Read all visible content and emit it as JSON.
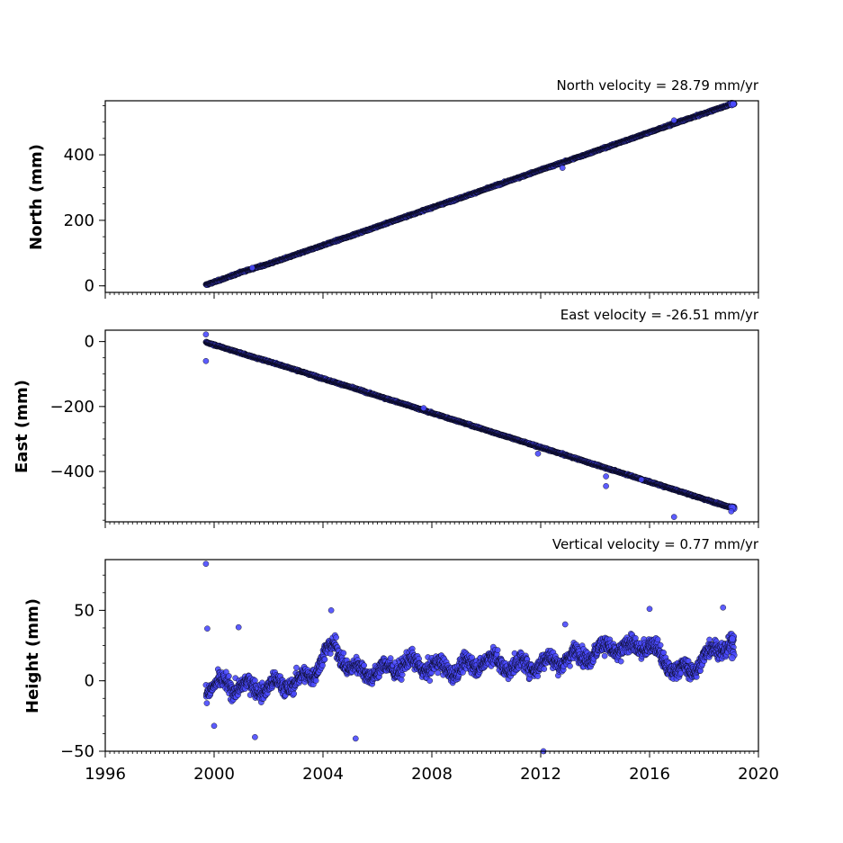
{
  "chart_data": [
    {
      "type": "scatter",
      "title": "North velocity = 28.79 mm/yr",
      "ylabel": "North (mm)",
      "xlim": [
        1996,
        2020
      ],
      "ylim": [
        -20,
        565
      ],
      "yticks": [
        0,
        200,
        400
      ],
      "ytick_labels": [
        "0",
        "200",
        "400"
      ],
      "xticks": [
        1996,
        2000,
        2004,
        2008,
        2012,
        2016,
        2020
      ],
      "xtick_labels": [
        "",
        "",
        "",
        "",
        "",
        "",
        ""
      ],
      "series": [
        {
          "color": "#4a4aff",
          "x": [
            1999.7,
            2000.5,
            2001.0,
            2001.6,
            2002.0,
            2003.0,
            2004.0,
            2005.0,
            2006.0,
            2007.0,
            2008.0,
            2009.0,
            2010.0,
            2011.0,
            2012.0,
            2013.0,
            2014.0,
            2015.0,
            2016.0,
            2017.0,
            2018.0,
            2019.0
          ],
          "y": [
            3,
            26,
            42,
            57,
            67,
            95,
            124,
            152,
            181,
            210,
            239,
            267,
            296,
            325,
            354,
            382,
            411,
            440,
            469,
            498,
            526,
            555
          ],
          "outliers_x": [
            2001.4,
            2012.8,
            2016.9
          ],
          "outliers_y": [
            55,
            360,
            505
          ]
        }
      ]
    },
    {
      "type": "scatter",
      "title": "East velocity = -26.51 mm/yr",
      "ylabel": "East (mm)",
      "xlim": [
        1996,
        2020
      ],
      "ylim": [
        -555,
        35
      ],
      "yticks": [
        0,
        -200,
        -400
      ],
      "ytick_labels": [
        "0",
        "−200",
        "−400"
      ],
      "xticks": [
        1996,
        2000,
        2004,
        2008,
        2012,
        2016,
        2020
      ],
      "xtick_labels": [
        "",
        "",
        "",
        "",
        "",
        "",
        ""
      ],
      "series": [
        {
          "color": "#4a4aff",
          "x": [
            1999.7,
            2000.5,
            2001.0,
            2001.6,
            2002.0,
            2003.0,
            2004.0,
            2005.0,
            2006.0,
            2007.0,
            2008.0,
            2009.0,
            2010.0,
            2011.0,
            2012.0,
            2013.0,
            2014.0,
            2015.0,
            2016.0,
            2017.0,
            2018.0,
            2019.0
          ],
          "y": [
            -2,
            -23,
            -36,
            -52,
            -61,
            -87,
            -114,
            -140,
            -167,
            -193,
            -220,
            -246,
            -273,
            -299,
            -326,
            -352,
            -379,
            -405,
            -432,
            -458,
            -485,
            -511
          ],
          "outliers_x": [
            1999.7,
            1999.7,
            2007.7,
            2011.9,
            2014.4,
            2014.4,
            2015.7,
            2016.9,
            2019.0
          ],
          "outliers_y": [
            22,
            -60,
            -205,
            -345,
            -415,
            -445,
            -425,
            -540,
            -523
          ]
        }
      ]
    },
    {
      "type": "scatter",
      "title": "Vertical velocity = 0.77 mm/yr",
      "ylabel": "Height (mm)",
      "xlim": [
        1996,
        2020
      ],
      "ylim": [
        -50,
        86
      ],
      "yticks": [
        -50,
        0,
        50
      ],
      "ytick_labels": [
        "−50",
        "0",
        "50"
      ],
      "xticks": [
        1996,
        2000,
        2004,
        2008,
        2012,
        2016,
        2020
      ],
      "xtick_labels": [
        "1996",
        "2000",
        "2004",
        "2008",
        "2012",
        "2016",
        "2020"
      ],
      "series": [
        {
          "color": "#4a4aff",
          "trend_x": [
            1999.7,
            2000.5,
            2001.5,
            2002.5,
            2003.5,
            2004.0,
            2004.5,
            2005.0,
            2006.0,
            2007.0,
            2008.0,
            2009.0,
            2010.0,
            2011.0,
            2012.0,
            2013.0,
            2014.0,
            2014.5,
            2015.0,
            2016.0,
            2016.5,
            2017.0,
            2017.5,
            2018.0,
            2018.5,
            2019.0
          ],
          "trend_y": [
            -4,
            -3,
            -5,
            -3,
            2,
            18,
            24,
            8,
            6,
            12,
            10,
            8,
            15,
            10,
            12,
            16,
            20,
            24,
            22,
            26,
            14,
            8,
            6,
            18,
            22,
            28
          ],
          "outliers_x": [
            1999.7,
            1999.75,
            2000.0,
            2000.9,
            2001.5,
            2004.3,
            2005.2,
            2012.1,
            2012.9,
            2016.0,
            2018.7
          ],
          "outliers_y": [
            83,
            37,
            -32,
            38,
            -40,
            50,
            -41,
            -50,
            40,
            51,
            52
          ]
        }
      ]
    }
  ]
}
